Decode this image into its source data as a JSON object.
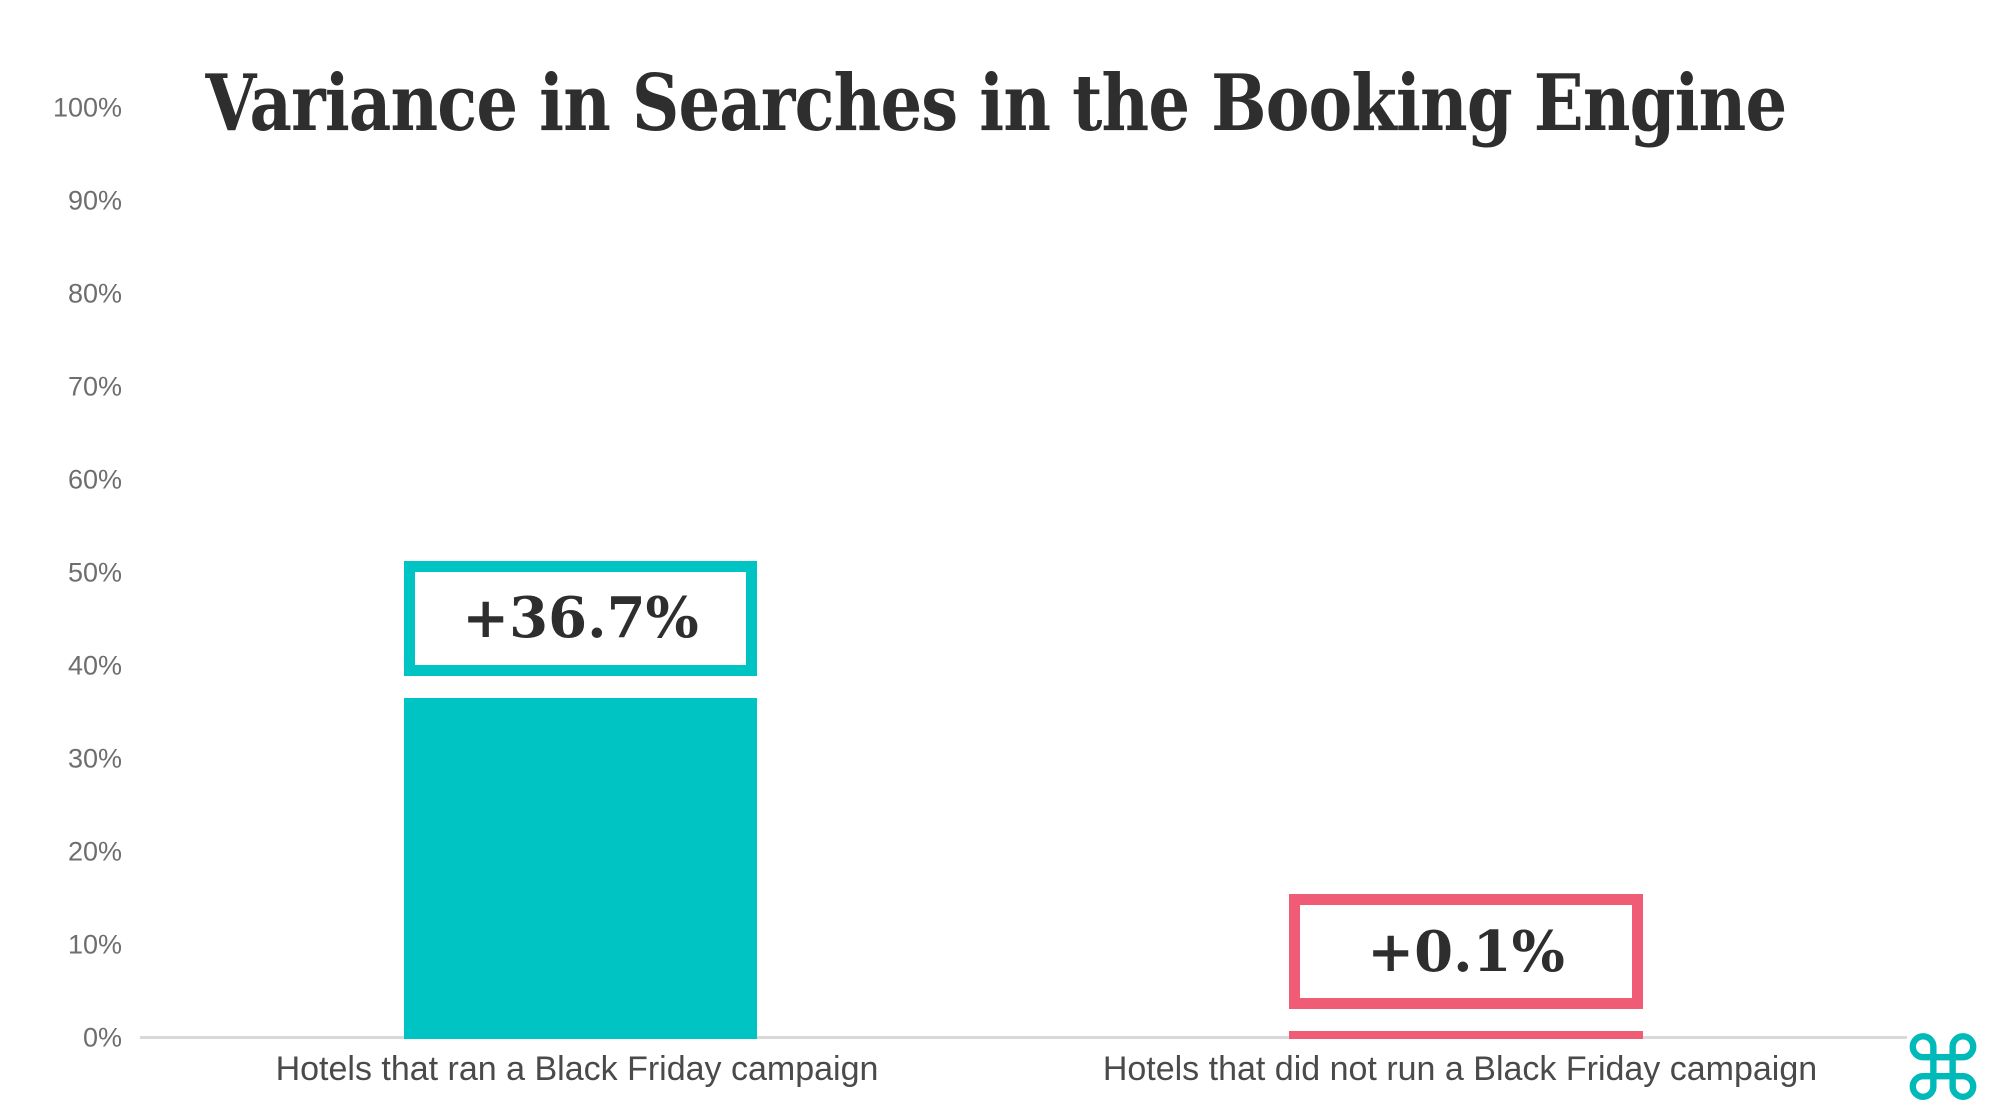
{
  "page": {
    "background": "#ffffff"
  },
  "chart_data": {
    "type": "bar",
    "title": "Variance in Searches in the Booking Engine",
    "categories": [
      "Hotels that ran a Black Friday campaign",
      "Hotels that did not run a Black Friday campaign"
    ],
    "values": [
      36.7,
      0.1
    ],
    "value_labels": [
      "+36.7%",
      "+0.1%"
    ],
    "bar_colors": [
      "#00C4C4",
      "#F05C75"
    ],
    "yticks": [
      "100%",
      "90%",
      "80%",
      "70%",
      "60%",
      "50%",
      "40%",
      "30%",
      "20%",
      "10%",
      "0%"
    ],
    "ylim": [
      0,
      100
    ],
    "xlabel": "",
    "ylabel": "",
    "grid": false,
    "legend": false,
    "axis_line_color": "#d9d9d9",
    "tick_label_color": "#6e6e6e",
    "category_label_color": "#4a4a4a",
    "title_color": "#2e2e2e"
  },
  "branding": {
    "logo_glyph": "⌘",
    "logo_color": "#00B9B9",
    "logo_name": "hotelchamp-logo"
  }
}
